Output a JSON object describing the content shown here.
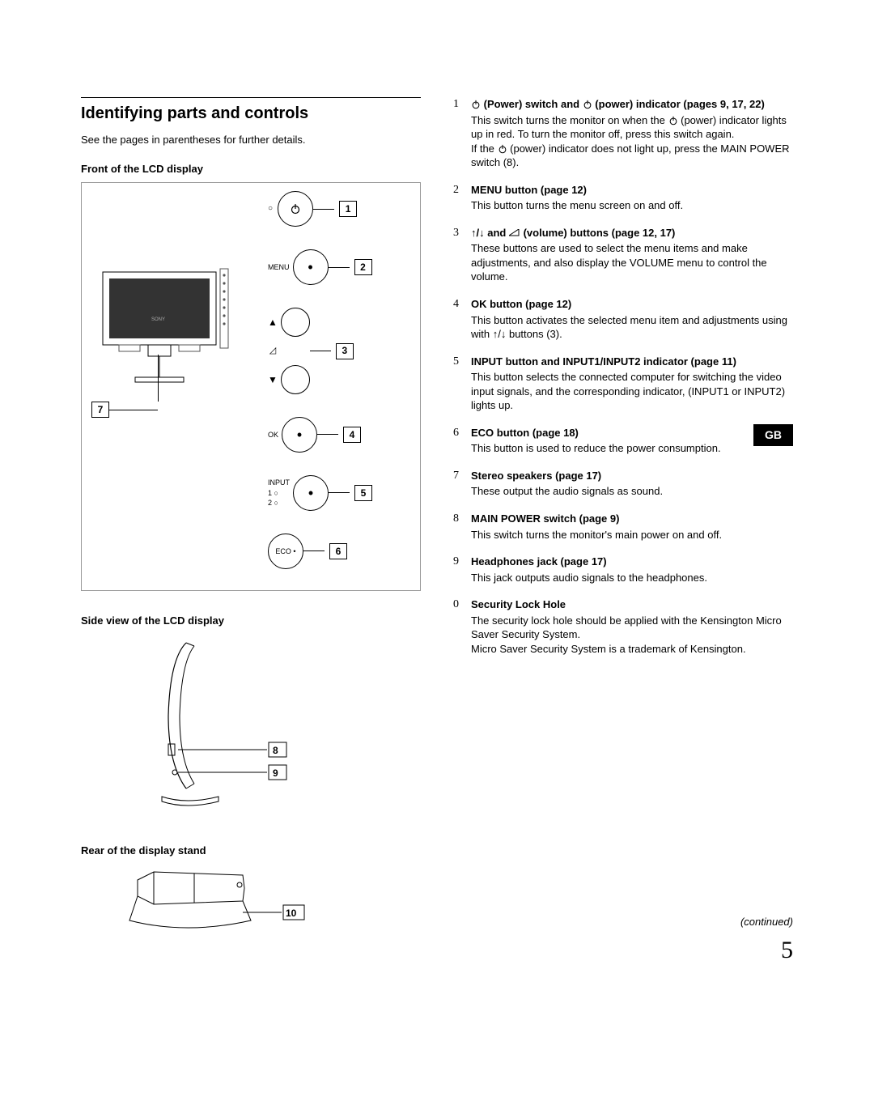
{
  "left": {
    "title": "Identifying parts and controls",
    "intro": "See the pages in parentheses for further details.",
    "h_front": "Front of the LCD display",
    "h_side": "Side view of the LCD display",
    "h_rear": "Rear of the display stand",
    "callouts": {
      "c1": "1",
      "c2": "2",
      "c3": "3",
      "c4": "4",
      "c5": "5",
      "c6": "6",
      "c7": "7",
      "c8": "8",
      "c9": "9",
      "c10": "10",
      "menu": "MENU",
      "ok": "OK",
      "input": "INPUT",
      "i1": "1",
      "i2": "2",
      "eco": "ECO"
    }
  },
  "right": {
    "items": [
      {
        "n": "1",
        "head": "⏻ (Power) switch and ⏻ (power) indicator (pages 9, 17, 22)",
        "body": "This switch turns the monitor on when the ⏻ (power) indicator lights up in red. To turn the monitor off, press this switch again.\nIf the ⏻ (power) indicator does not light up, press the MAIN POWER switch (8)."
      },
      {
        "n": "2",
        "head": "MENU button (page 12)",
        "body": "This button turns the menu screen on and off."
      },
      {
        "n": "3",
        "head": "↑/↓ and ⌧ (volume) buttons (page 12, 17)",
        "body": "These buttons are used to select the menu items and make adjustments, and also display the VOLUME menu to control the volume."
      },
      {
        "n": "4",
        "head": "OK button (page 12)",
        "body": "This button activates the selected menu item and adjustments using with ↑/↓ buttons (3)."
      },
      {
        "n": "5",
        "head": "INPUT button and INPUT1/INPUT2 indicator (page 11)",
        "body": "This button selects the connected computer for switching the video input signals, and the corresponding indicator, (INPUT1 or INPUT2) lights up."
      },
      {
        "n": "6",
        "head": "ECO button (page 18)",
        "body": "This button is used to reduce the power consumption."
      },
      {
        "n": "7",
        "head": "Stereo speakers (page 17)",
        "body": "These output the audio signals as sound."
      },
      {
        "n": "8",
        "head": "MAIN POWER switch (page 9)",
        "body": "This switch turns the monitor's main power on and off."
      },
      {
        "n": "9",
        "head": "Headphones jack (page 17)",
        "body": "This jack outputs audio signals to the headphones."
      },
      {
        "n": "0",
        "head": "Security Lock Hole",
        "body": "The security lock hole should be applied with the Kensington Micro Saver Security System.\nMicro Saver Security System is a trademark of Kensington."
      }
    ],
    "gb": "GB",
    "continued": "(continued)",
    "page": "5"
  }
}
